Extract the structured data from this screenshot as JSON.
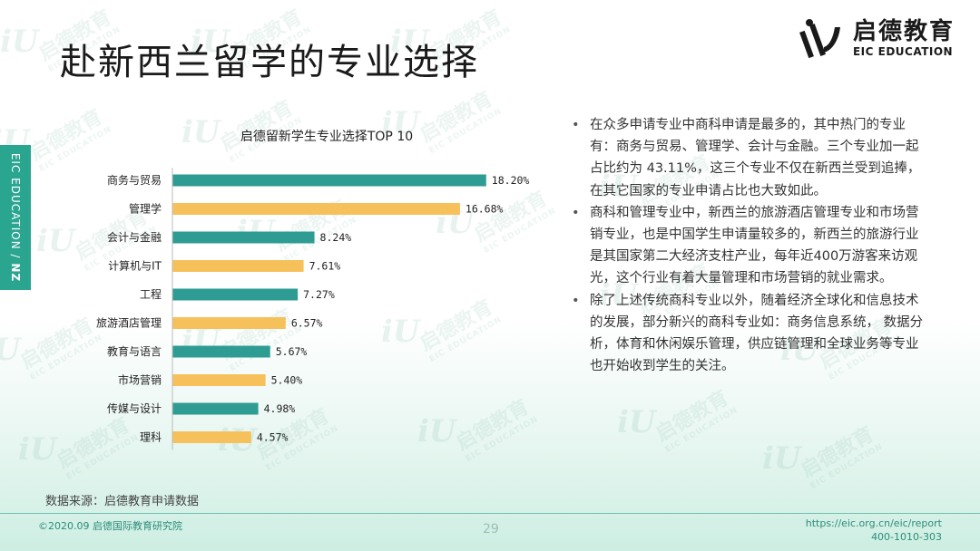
{
  "page": {
    "title": "赴新西兰留学的专业选择",
    "side_label_a": "EIC EDUCATION / ",
    "side_label_b": "NZ"
  },
  "logo": {
    "cn": "启德教育",
    "en": "EIC EDUCATION"
  },
  "watermark": {
    "cn": "启德教育",
    "en": "EIC EDUCATION",
    "mark": "iU"
  },
  "chart_data": {
    "type": "bar",
    "orientation": "horizontal",
    "title": "启德留新学生专业选择TOP 10",
    "categories": [
      "商务与贸易",
      "管理学",
      "会计与金融",
      "计算机与IT",
      "工程",
      "旅游酒店管理",
      "教育与语言",
      "市场营销",
      "传媒与设计",
      "理科"
    ],
    "values": [
      18.2,
      16.68,
      8.24,
      7.61,
      7.27,
      6.57,
      5.67,
      5.4,
      4.98,
      4.57
    ],
    "value_labels": [
      "18.20%",
      "16.68%",
      "8.24%",
      "7.61%",
      "7.27%",
      "6.57%",
      "5.67%",
      "5.40%",
      "4.98%",
      "4.57%"
    ],
    "colors": [
      "#2e9c92",
      "#f6c15b"
    ],
    "xlim": [
      0,
      20
    ],
    "grid": false,
    "legend": "none"
  },
  "source": {
    "text": "数据来源：启德教育申请数据"
  },
  "bullets": [
    "在众多申请专业中商科申请是最多的，其中热门的专业有：商务与贸易、管理学、会计与金融。三个专业加一起占比约为 43.11%，这三个专业不仅在新西兰受到追捧，在其它国家的专业申请占比也大致如此。",
    "商科和管理专业中，新西兰的旅游酒店管理专业和市场营销专业，也是中国学生申请量较多的，新西兰的旅游行业是其国家第二大经济支柱产业，每年近400万游客来访观光，这个行业有着大量管理和市场营销的就业需求。",
    "除了上述传统商科专业以外，随着经济全球化和信息技术的发展，部分新兴的商科专业如：商务信息系统， 数据分析，体育和休闲娱乐管理，供应链管理和全球业务等专业也开始收到学生的关注。"
  ],
  "footer": {
    "left": "©2020.09 启德国际教育研究院",
    "page_number": "29",
    "url": "https://eic.org.cn/eic/report",
    "phone": "400-1010-303"
  }
}
